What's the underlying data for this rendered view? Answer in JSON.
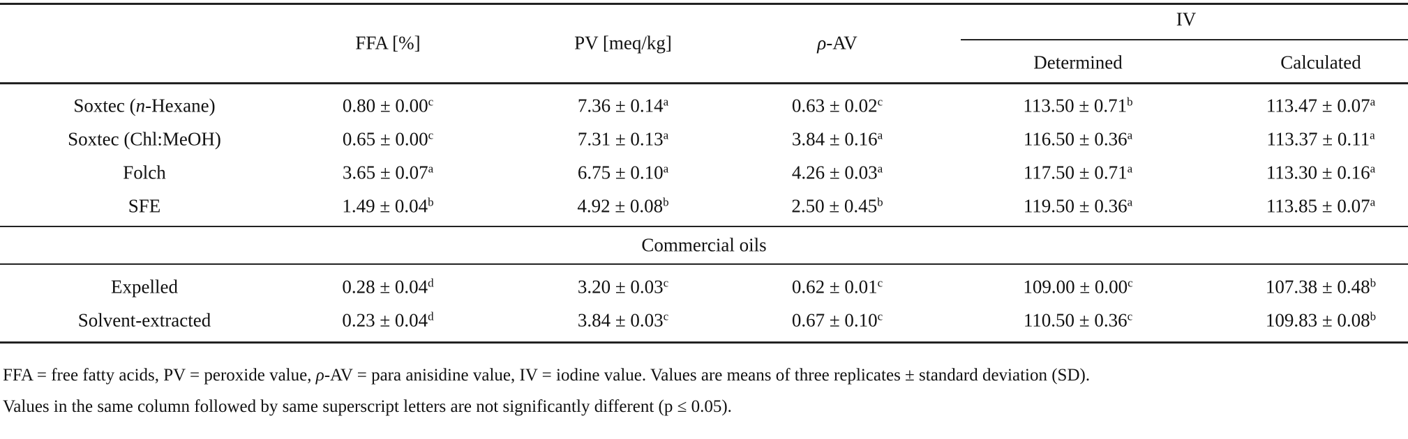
{
  "header": {
    "ffa": "FFA [%]",
    "pv": "PV [meq/kg]",
    "pav_symbol": "ρ",
    "pav_rest": "-AV",
    "iv": "IV",
    "determined": "Determined",
    "calculated": "Calculated"
  },
  "rows": [
    {
      "label_pre": "Soxtec (",
      "label_it": "n",
      "label_post": "-Hexane)",
      "cells": [
        [
          "0.80 ± 0.00",
          "c"
        ],
        [
          "7.36 ± 0.14",
          "a"
        ],
        [
          "0.63 ± 0.02",
          "c"
        ],
        [
          "113.50 ± 0.71",
          "b"
        ],
        [
          "113.47 ± 0.07",
          "a"
        ]
      ]
    },
    {
      "label_pre": "Soxtec (Chl:MeOH)",
      "label_it": "",
      "label_post": "",
      "cells": [
        [
          "0.65 ± 0.00",
          "c"
        ],
        [
          "7.31 ± 0.13",
          "a"
        ],
        [
          "3.84 ± 0.16",
          "a"
        ],
        [
          "116.50 ± 0.36",
          "a"
        ],
        [
          "113.37 ± 0.11",
          "a"
        ]
      ]
    },
    {
      "label_pre": "Folch",
      "label_it": "",
      "label_post": "",
      "cells": [
        [
          "3.65 ± 0.07",
          "a"
        ],
        [
          "6.75 ± 0.10",
          "a"
        ],
        [
          "4.26 ± 0.03",
          "a"
        ],
        [
          "117.50 ± 0.71",
          "a"
        ],
        [
          "113.30 ± 0.16",
          "a"
        ]
      ]
    },
    {
      "label_pre": "SFE",
      "label_it": "",
      "label_post": "",
      "cells": [
        [
          "1.49 ± 0.04",
          "b"
        ],
        [
          "4.92 ± 0.08",
          "b"
        ],
        [
          "2.50 ± 0.45",
          "b"
        ],
        [
          "119.50 ± 0.36",
          "a"
        ],
        [
          "113.85 ± 0.07",
          "a"
        ]
      ]
    },
    {
      "label_pre": "Expelled",
      "label_it": "",
      "label_post": "",
      "cells": [
        [
          "0.28 ± 0.04",
          "d"
        ],
        [
          "3.20 ± 0.03",
          "c"
        ],
        [
          "0.62 ± 0.01",
          "c"
        ],
        [
          "109.00 ± 0.00",
          "c"
        ],
        [
          "107.38 ± 0.48",
          "b"
        ]
      ]
    },
    {
      "label_pre": "Solvent-extracted",
      "label_it": "",
      "label_post": "",
      "cells": [
        [
          "0.23 ± 0.04",
          "d"
        ],
        [
          "3.84 ± 0.03",
          "c"
        ],
        [
          "0.67 ± 0.10",
          "c"
        ],
        [
          "110.50 ± 0.36",
          "c"
        ],
        [
          "109.83 ± 0.08",
          "b"
        ]
      ]
    }
  ],
  "section_commercial": "Commercial oils",
  "footnote": {
    "line1_a": "FFA = free fatty acids, PV = peroxide value, ",
    "line1_sym": "ρ",
    "line1_b": "-AV = para anisidine value, IV = iodine value. Values are means of three replicates ± standard deviation (SD).",
    "line2": "Values in the same column followed by same superscript letters are not significantly different (p ≤ 0.05)."
  }
}
